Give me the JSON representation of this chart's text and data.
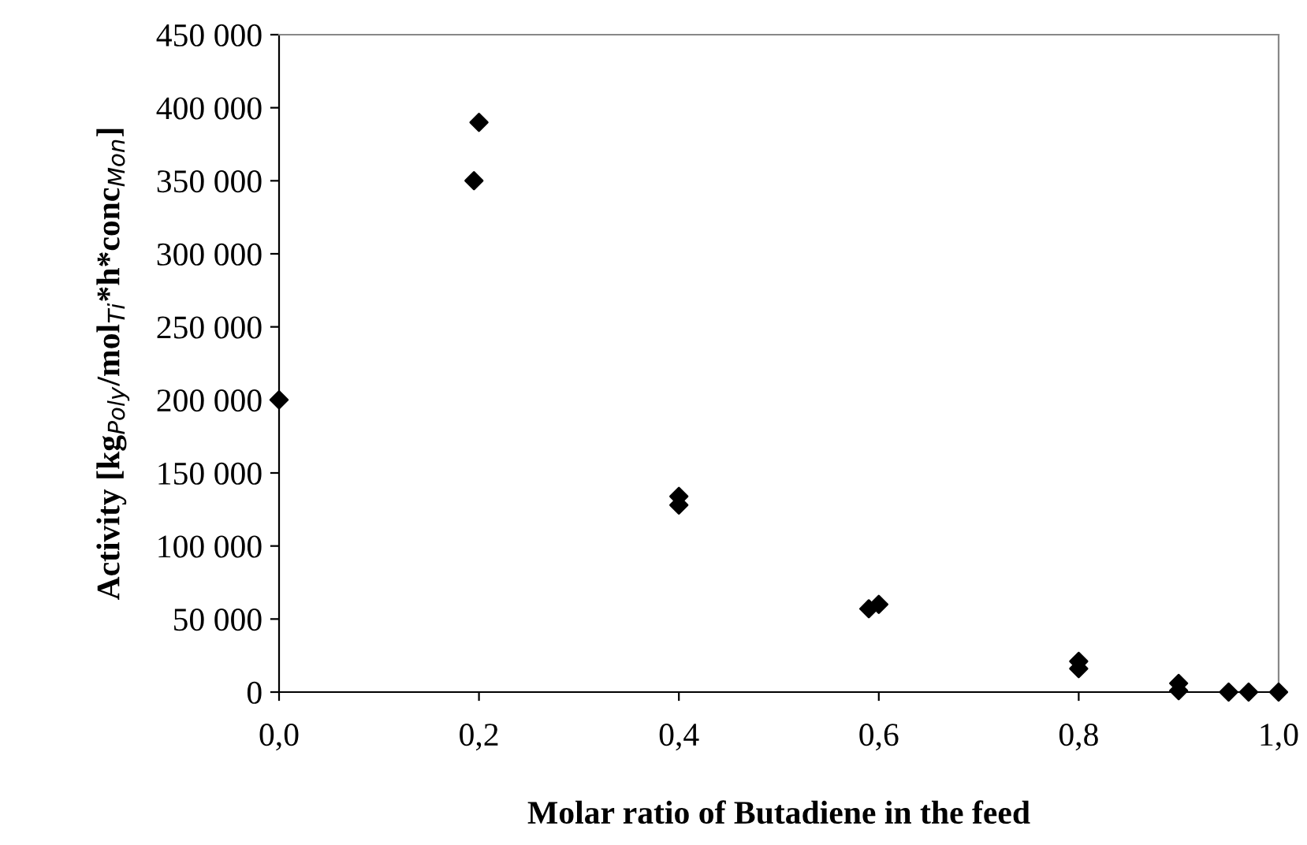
{
  "chart_data": {
    "type": "scatter",
    "xlabel": "Molar ratio of Butadiene in the feed",
    "ylabel": "Activity [kg$_{Poly}$/mol$_{Ti}$*h*conc$_{Mon}$]",
    "x": [
      0.0,
      0.195,
      0.2,
      0.4,
      0.4,
      0.59,
      0.6,
      0.8,
      0.8,
      0.9,
      0.9,
      0.95,
      0.97,
      1.0
    ],
    "series": [
      {
        "color": "#000000",
        "values": [
          200000,
          350000,
          390000,
          128000,
          134000,
          57000,
          60000,
          16000,
          21000,
          1000,
          6000,
          0,
          0,
          0
        ]
      }
    ],
    "marker": "diamond",
    "xlim": [
      0,
      1
    ],
    "ylim": [
      0,
      450000
    ],
    "xticks": [
      {
        "value": 0,
        "label": "0,0"
      },
      {
        "value": 0.2,
        "label": "0,2"
      },
      {
        "value": 0.4,
        "label": "0,4"
      },
      {
        "value": 0.6,
        "label": "0,6"
      },
      {
        "value": 0.8,
        "label": "0,8"
      },
      {
        "value": 1,
        "label": "1,0"
      }
    ],
    "yticks": [
      0,
      {
        "value": 50000,
        "label": "50 000"
      },
      {
        "value": 100000,
        "label": "100 000"
      },
      {
        "value": 150000,
        "label": "150 000"
      },
      {
        "value": 200000,
        "label": "200 000"
      },
      {
        "value": 250000,
        "label": "250 000"
      },
      {
        "value": 300000,
        "label": "300 000"
      },
      {
        "value": 350000,
        "label": "350 000"
      },
      {
        "value": 400000,
        "label": "400 000"
      },
      {
        "value": 450000,
        "label": "450 000"
      }
    ],
    "grid": false,
    "legend": false
  }
}
